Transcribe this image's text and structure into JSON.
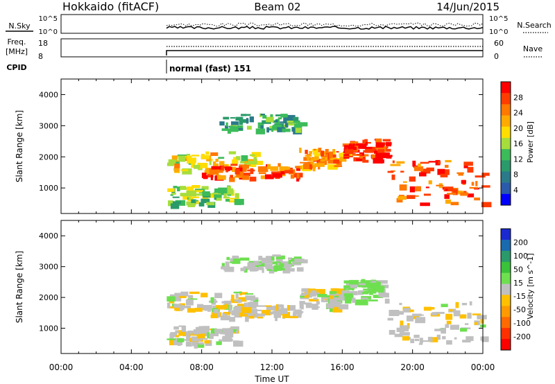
{
  "header": {
    "station": "Hokkaido (fitACF)",
    "beam": "Beam 02",
    "date": "14/Jun/2015"
  },
  "noise_panel": {
    "left_label": "N.Sky",
    "right_label": "N.Search",
    "tick_top": "10^5",
    "tick_bottom": "10^0",
    "right_tick_top": "10^5",
    "right_tick_bottom": "10^0"
  },
  "freq_panel": {
    "left_label_1": "Freq.",
    "left_label_2": "[MHz]",
    "right_label": "Nave",
    "ticks_left": [
      "18",
      "8"
    ],
    "ticks_right": [
      "60",
      "0"
    ]
  },
  "cpid": {
    "label": "CPID",
    "mode": "normal (fast) 151"
  },
  "colorbars": {
    "power": {
      "label": "Power [dB]",
      "ticks": [
        "28",
        "24",
        "20",
        "16",
        "12",
        "8",
        "4"
      ],
      "colors": [
        "#ff0000",
        "#ff3c00",
        "#ff7800",
        "#ffaa00",
        "#ffdd00",
        "#a6dd3c",
        "#3cbb5a",
        "#2a9a6a",
        "#2a7a8a",
        "#2a5aaa",
        "#0000ff"
      ]
    },
    "velocity": {
      "label": "Velocity [m s^-1]",
      "ticks": [
        "200",
        "100",
        "50",
        "15",
        "-15",
        "-50",
        "-100",
        "-200"
      ],
      "colors": [
        "#1a2ad0",
        "#1a6ab0",
        "#2a9a6a",
        "#3ac23a",
        "#6ee050",
        "#c0c0c0",
        "#ffc000",
        "#ff9a00",
        "#ff6a00",
        "#ff3000",
        "#ff0000"
      ]
    }
  },
  "y_axis_label": "Slant Range [km]",
  "y_ticks": [
    "4000",
    "3000",
    "2000",
    "1000"
  ],
  "x_ticks": [
    "00:00",
    "04:00",
    "08:00",
    "12:00",
    "16:00",
    "20:00",
    "00:00"
  ],
  "x_axis_label": "Time UT",
  "chart_data": {
    "type": "heatmap",
    "xlabel": "Time UT",
    "ylabel": "Slant Range [km]",
    "xlim_hours": [
      0,
      24
    ],
    "ylim_km": [
      180,
      4500
    ],
    "data_start_hour": 6,
    "echo_bands": [
      {
        "start_hour": 6.0,
        "end_hour": 11.0,
        "range_km": [
          1600,
          2200
        ],
        "power_db": 18,
        "velocity": -5
      },
      {
        "start_hour": 8.0,
        "end_hour": 13.5,
        "range_km": [
          1350,
          1800
        ],
        "power_db": 26,
        "velocity": -10
      },
      {
        "start_hour": 9.0,
        "end_hour": 13.5,
        "range_km": [
          2900,
          3400
        ],
        "power_db": 10,
        "velocity": 10
      },
      {
        "start_hour": 13.5,
        "end_hour": 16.0,
        "range_km": [
          1700,
          2300
        ],
        "power_db": 22,
        "velocity": 0
      },
      {
        "start_hour": 16.0,
        "end_hour": 18.5,
        "range_km": [
          1900,
          2600
        ],
        "power_db": 28,
        "velocity": 30
      },
      {
        "start_hour": 18.5,
        "end_hour": 24.0,
        "range_km": [
          500,
          1900
        ],
        "power_db": 26,
        "velocity": -5
      },
      {
        "start_hour": 6.0,
        "end_hour": 10.0,
        "range_km": [
          500,
          1100
        ],
        "power_db": 14,
        "velocity": 0
      }
    ]
  }
}
